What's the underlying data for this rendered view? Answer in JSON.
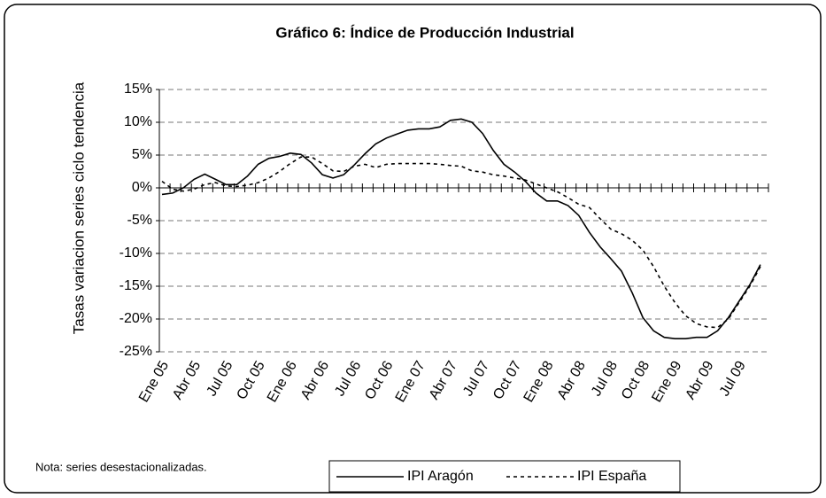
{
  "chart_data": {
    "type": "line",
    "title": "Gráfico 6: Índice de Producción Industrial",
    "y_label": "Tasas variacion series ciclo tendencia",
    "note": "Nota: series desestacionalizadas.",
    "categories": [
      "Ene 05",
      null,
      null,
      "Abr 05",
      null,
      null,
      "Jul 05",
      null,
      null,
      "Oct 05",
      null,
      null,
      "Ene 06",
      null,
      null,
      "Abr 06",
      null,
      null,
      "Jul 06",
      null,
      null,
      "Oct 06",
      null,
      null,
      "Ene 07",
      null,
      null,
      "Abr 07",
      null,
      null,
      "Jul 07",
      null,
      null,
      "Oct 07",
      null,
      null,
      "Ene 08",
      null,
      null,
      "Abr 08",
      null,
      null,
      "Jul 08",
      null,
      null,
      "Oct 08",
      null,
      null,
      "Ene 09",
      null,
      null,
      "Abr 09",
      null,
      null,
      "Jul 09",
      null,
      null
    ],
    "series": [
      {
        "name": "IPI Aragón",
        "color": "#000000",
        "dash": "solid",
        "values": [
          -1.0,
          -0.8,
          0.0,
          1.3,
          2.1,
          1.3,
          0.5,
          0.5,
          1.8,
          3.6,
          4.5,
          4.8,
          5.3,
          5.1,
          3.8,
          2.0,
          1.5,
          2.0,
          3.5,
          5.2,
          6.7,
          7.6,
          8.2,
          8.8,
          9.0,
          9.0,
          9.3,
          10.3,
          10.5,
          10.0,
          8.3,
          5.7,
          3.6,
          2.4,
          1.0,
          -0.8,
          -2.0,
          -2.0,
          -2.7,
          -4.2,
          -6.8,
          -9.0,
          -10.8,
          -12.7,
          -16.0,
          -19.8,
          -21.8,
          -22.8,
          -23.0,
          -23.0,
          -22.8,
          -22.8,
          -21.8,
          -19.8,
          -17.3,
          -14.8,
          -11.7
        ]
      },
      {
        "name": "IPI España",
        "color": "#000000",
        "dash": "dotted",
        "values": [
          1.0,
          -0.2,
          -0.5,
          -0.2,
          0.5,
          0.8,
          0.3,
          0.2,
          0.4,
          0.8,
          1.5,
          2.5,
          3.7,
          4.7,
          4.7,
          3.7,
          2.6,
          2.5,
          3.3,
          3.6,
          3.1,
          3.6,
          3.7,
          3.7,
          3.7,
          3.7,
          3.6,
          3.4,
          3.3,
          2.6,
          2.4,
          2.0,
          1.8,
          1.5,
          1.2,
          0.6,
          0.0,
          -0.6,
          -1.5,
          -2.5,
          -3.0,
          -4.7,
          -6.3,
          -7.0,
          -8.0,
          -9.5,
          -12.0,
          -15.0,
          -17.5,
          -19.5,
          -20.7,
          -21.2,
          -21.3,
          -20.0,
          -17.5,
          -15.0,
          -12.0
        ]
      }
    ],
    "ylim": [
      -25,
      15
    ],
    "yticks": [
      {
        "value": -25,
        "label": "-25%"
      },
      {
        "value": -20,
        "label": "-20%"
      },
      {
        "value": -15,
        "label": "-15%"
      },
      {
        "value": -10,
        "label": "-10%"
      },
      {
        "value": -5,
        "label": "-5%"
      },
      {
        "value": 0,
        "label": "0%"
      },
      {
        "value": 5,
        "label": "5%"
      },
      {
        "value": 10,
        "label": "10%"
      },
      {
        "value": 15,
        "label": "15%"
      }
    ],
    "grid": true,
    "legend": "bottom"
  }
}
